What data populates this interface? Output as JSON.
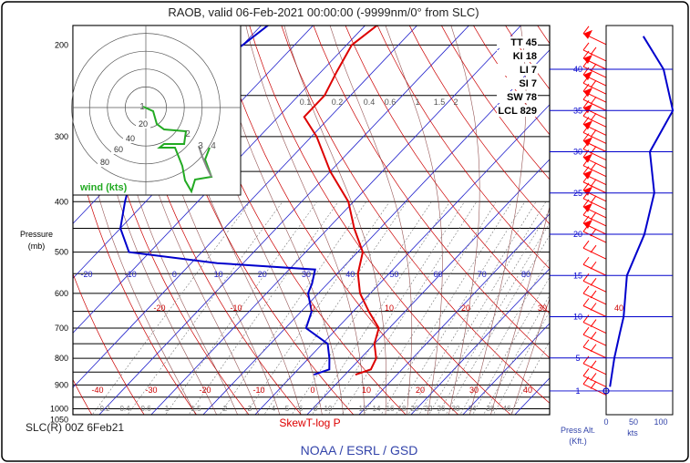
{
  "title": "RAOB, valid 06-Feb-2021 00:00:00 (-9999nm/0° from SLC)",
  "station_label": "SLC(R) 00Z 6Feb21",
  "plot_label": "SkewT-log P",
  "footer": "NOAA / ESRL / GSD",
  "axes": {
    "pressure_title": "Pressure",
    "pressure_unit": "(mb)",
    "press_alt_title": "Press Alt.",
    "press_alt_unit": "(Kft.)",
    "kts_label": "kts",
    "kts_ticks": [
      "0",
      "50",
      "100"
    ]
  },
  "indices": [
    {
      "label": "TT",
      "value": "45"
    },
    {
      "label": "KI",
      "value": "18"
    },
    {
      "label": "LI",
      "value": "7"
    },
    {
      "label": "SI",
      "value": "7"
    },
    {
      "label": "SW",
      "value": "78"
    },
    {
      "label": "LCL",
      "value": "829"
    }
  ],
  "hodograph": {
    "title": "wind (kts)",
    "ring_labels": [
      "20",
      "40",
      "60",
      "80"
    ],
    "marker_labels": [
      "1",
      "2",
      "3",
      "4"
    ]
  },
  "colors": {
    "temperature": "#dd0000",
    "dewpoint": "#0000cc",
    "isotherm": "#2222cc",
    "dry_adiabat": "#cc0000",
    "moist_adiabat": "#7a2a2a",
    "mixing_ratio": "#777777",
    "wind_barb": "#ff0000",
    "hodo_trace": "#22aa22",
    "footer": "#3344aa"
  },
  "chart_data": {
    "type": "line",
    "pressure_levels": [
      200,
      300,
      400,
      500,
      600,
      700,
      800,
      900,
      1000,
      1050
    ],
    "isotherm_labels_upper": [
      "-20",
      "-10",
      "0",
      "10",
      "20",
      "30",
      "40",
      "50",
      "60",
      "70",
      "80"
    ],
    "isotherm_labels_mid": [
      "-20",
      "-10",
      "0",
      "10",
      "20",
      "30",
      "40"
    ],
    "isotherm_labels_lower": [
      "-40",
      "-30",
      "-20",
      "-10",
      "0",
      "10",
      "20",
      "30",
      "40"
    ],
    "mixing_ratio_labels_top": [
      "0.1",
      "0.2",
      "0.4",
      "0.6",
      "1",
      "1.5",
      "2"
    ],
    "mixing_ratio_labels_bottom": [
      "0.2",
      "0.4",
      "0.6",
      "1",
      "1.5",
      "2",
      "3",
      "4",
      "5",
      "6",
      "8",
      "10",
      "12",
      "14",
      "16",
      "18",
      "20",
      "22",
      "26",
      "30",
      "34",
      "38",
      "46"
    ],
    "press_alt_kft": [
      "40",
      "35",
      "30",
      "25",
      "20",
      "15",
      "10",
      "5",
      "1"
    ],
    "series": [
      {
        "name": "temperature",
        "points": [
          {
            "p": 150,
            "t": -56
          },
          {
            "p": 175,
            "t": -57
          },
          {
            "p": 200,
            "t": -59
          },
          {
            "p": 225,
            "t": -57
          },
          {
            "p": 250,
            "t": -55
          },
          {
            "p": 275,
            "t": -55
          },
          {
            "p": 300,
            "t": -49
          },
          {
            "p": 350,
            "t": -40
          },
          {
            "p": 400,
            "t": -31
          },
          {
            "p": 450,
            "t": -25
          },
          {
            "p": 500,
            "t": -19
          },
          {
            "p": 550,
            "t": -16
          },
          {
            "p": 600,
            "t": -12
          },
          {
            "p": 650,
            "t": -7
          },
          {
            "p": 700,
            "t": -2
          },
          {
            "p": 750,
            "t": 0
          },
          {
            "p": 800,
            "t": 3
          },
          {
            "p": 840,
            "t": 4
          },
          {
            "p": 860,
            "t": 2
          }
        ]
      },
      {
        "name": "dewpoint",
        "points": [
          {
            "p": 150,
            "t": -72
          },
          {
            "p": 175,
            "t": -78
          },
          {
            "p": 200,
            "t": -80
          },
          {
            "p": 250,
            "t": -85
          },
          {
            "p": 300,
            "t": -84
          },
          {
            "p": 350,
            "t": -78
          },
          {
            "p": 400,
            "t": -74
          },
          {
            "p": 450,
            "t": -70
          },
          {
            "p": 500,
            "t": -64
          },
          {
            "p": 525,
            "t": -45
          },
          {
            "p": 540,
            "t": -25
          },
          {
            "p": 575,
            "t": -23
          },
          {
            "p": 600,
            "t": -22
          },
          {
            "p": 650,
            "t": -18
          },
          {
            "p": 700,
            "t": -16
          },
          {
            "p": 750,
            "t": -9
          },
          {
            "p": 800,
            "t": -6
          },
          {
            "p": 840,
            "t": -4
          },
          {
            "p": 860,
            "t": -6
          }
        ]
      },
      {
        "name": "wind_speed_kts",
        "points": [
          {
            "h": 1.5,
            "v": 7
          },
          {
            "h": 5,
            "v": 15
          },
          {
            "h": 8,
            "v": 25
          },
          {
            "h": 10,
            "v": 32
          },
          {
            "h": 15,
            "v": 38
          },
          {
            "h": 20,
            "v": 70
          },
          {
            "h": 25,
            "v": 88
          },
          {
            "h": 30,
            "v": 80
          },
          {
            "h": 35,
            "v": 122
          },
          {
            "h": 40,
            "v": 105
          },
          {
            "h": 44,
            "v": 68
          }
        ]
      }
    ]
  }
}
